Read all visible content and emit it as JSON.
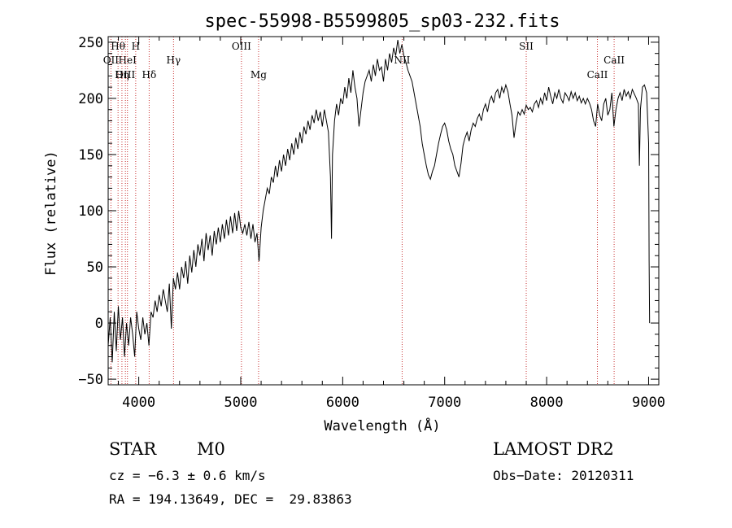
{
  "chart_data": {
    "type": "line",
    "title": "spec-55998-B5599805_sp03-232.fits",
    "xlabel": "Wavelength (Å)",
    "ylabel": "Flux (relative)",
    "xlim": [
      3700,
      9100
    ],
    "ylim": [
      -55,
      255
    ],
    "xticks": [
      4000,
      5000,
      6000,
      7000,
      8000,
      9000
    ],
    "yticks": [
      -50,
      0,
      50,
      100,
      150,
      200,
      250
    ],
    "grid": false,
    "series": [
      {
        "points": [
          [
            3700,
            -20
          ],
          [
            3720,
            5
          ],
          [
            3740,
            -35
          ],
          [
            3760,
            10
          ],
          [
            3780,
            -25
          ],
          [
            3800,
            15
          ],
          [
            3820,
            -15
          ],
          [
            3840,
            5
          ],
          [
            3860,
            -30
          ],
          [
            3880,
            0
          ],
          [
            3900,
            -20
          ],
          [
            3920,
            5
          ],
          [
            3940,
            -10
          ],
          [
            3960,
            -30
          ],
          [
            3980,
            10
          ],
          [
            4000,
            -5
          ],
          [
            4020,
            -15
          ],
          [
            4040,
            5
          ],
          [
            4060,
            -10
          ],
          [
            4080,
            0
          ],
          [
            4100,
            -20
          ],
          [
            4120,
            10
          ],
          [
            4140,
            5
          ],
          [
            4160,
            20
          ],
          [
            4180,
            10
          ],
          [
            4200,
            25
          ],
          [
            4220,
            15
          ],
          [
            4240,
            30
          ],
          [
            4260,
            20
          ],
          [
            4280,
            10
          ],
          [
            4300,
            35
          ],
          [
            4320,
            -5
          ],
          [
            4340,
            40
          ],
          [
            4360,
            30
          ],
          [
            4380,
            45
          ],
          [
            4400,
            30
          ],
          [
            4420,
            50
          ],
          [
            4440,
            40
          ],
          [
            4460,
            55
          ],
          [
            4480,
            35
          ],
          [
            4500,
            60
          ],
          [
            4520,
            45
          ],
          [
            4540,
            65
          ],
          [
            4560,
            50
          ],
          [
            4580,
            70
          ],
          [
            4600,
            60
          ],
          [
            4620,
            75
          ],
          [
            4640,
            55
          ],
          [
            4660,
            80
          ],
          [
            4680,
            65
          ],
          [
            4700,
            78
          ],
          [
            4720,
            60
          ],
          [
            4740,
            82
          ],
          [
            4760,
            70
          ],
          [
            4780,
            85
          ],
          [
            4800,
            72
          ],
          [
            4820,
            88
          ],
          [
            4840,
            75
          ],
          [
            4860,
            92
          ],
          [
            4880,
            78
          ],
          [
            4900,
            95
          ],
          [
            4920,
            80
          ],
          [
            4940,
            98
          ],
          [
            4960,
            82
          ],
          [
            4980,
            100
          ],
          [
            5000,
            85
          ],
          [
            5020,
            80
          ],
          [
            5040,
            88
          ],
          [
            5060,
            78
          ],
          [
            5080,
            90
          ],
          [
            5100,
            75
          ],
          [
            5120,
            88
          ],
          [
            5140,
            72
          ],
          [
            5160,
            80
          ],
          [
            5180,
            55
          ],
          [
            5200,
            85
          ],
          [
            5220,
            100
          ],
          [
            5240,
            110
          ],
          [
            5260,
            120
          ],
          [
            5280,
            115
          ],
          [
            5300,
            130
          ],
          [
            5320,
            125
          ],
          [
            5340,
            140
          ],
          [
            5360,
            130
          ],
          [
            5380,
            145
          ],
          [
            5400,
            135
          ],
          [
            5420,
            150
          ],
          [
            5440,
            140
          ],
          [
            5460,
            155
          ],
          [
            5480,
            145
          ],
          [
            5500,
            160
          ],
          [
            5520,
            150
          ],
          [
            5540,
            165
          ],
          [
            5560,
            155
          ],
          [
            5580,
            170
          ],
          [
            5600,
            160
          ],
          [
            5620,
            175
          ],
          [
            5640,
            168
          ],
          [
            5660,
            180
          ],
          [
            5680,
            172
          ],
          [
            5700,
            185
          ],
          [
            5720,
            178
          ],
          [
            5740,
            190
          ],
          [
            5760,
            180
          ],
          [
            5780,
            188
          ],
          [
            5800,
            175
          ],
          [
            5820,
            190
          ],
          [
            5840,
            180
          ],
          [
            5860,
            170
          ],
          [
            5880,
            130
          ],
          [
            5890,
            75
          ],
          [
            5900,
            150
          ],
          [
            5920,
            180
          ],
          [
            5940,
            195
          ],
          [
            5960,
            185
          ],
          [
            5980,
            200
          ],
          [
            6000,
            195
          ],
          [
            6020,
            210
          ],
          [
            6040,
            200
          ],
          [
            6060,
            218
          ],
          [
            6080,
            205
          ],
          [
            6100,
            225
          ],
          [
            6120,
            210
          ],
          [
            6140,
            200
          ],
          [
            6160,
            175
          ],
          [
            6180,
            190
          ],
          [
            6200,
            205
          ],
          [
            6220,
            215
          ],
          [
            6240,
            220
          ],
          [
            6260,
            225
          ],
          [
            6280,
            215
          ],
          [
            6300,
            230
          ],
          [
            6320,
            220
          ],
          [
            6340,
            235
          ],
          [
            6360,
            225
          ],
          [
            6380,
            228
          ],
          [
            6400,
            215
          ],
          [
            6420,
            235
          ],
          [
            6440,
            225
          ],
          [
            6460,
            240
          ],
          [
            6480,
            232
          ],
          [
            6500,
            245
          ],
          [
            6520,
            238
          ],
          [
            6540,
            252
          ],
          [
            6560,
            240
          ],
          [
            6580,
            248
          ],
          [
            6600,
            238
          ],
          [
            6620,
            232
          ],
          [
            6640,
            225
          ],
          [
            6660,
            220
          ],
          [
            6680,
            215
          ],
          [
            6700,
            205
          ],
          [
            6720,
            195
          ],
          [
            6740,
            185
          ],
          [
            6760,
            175
          ],
          [
            6780,
            160
          ],
          [
            6800,
            150
          ],
          [
            6820,
            140
          ],
          [
            6840,
            132
          ],
          [
            6860,
            128
          ],
          [
            6880,
            135
          ],
          [
            6900,
            140
          ],
          [
            6920,
            150
          ],
          [
            6940,
            160
          ],
          [
            6960,
            168
          ],
          [
            6980,
            175
          ],
          [
            7000,
            178
          ],
          [
            7020,
            172
          ],
          [
            7040,
            162
          ],
          [
            7060,
            155
          ],
          [
            7080,
            150
          ],
          [
            7100,
            140
          ],
          [
            7120,
            135
          ],
          [
            7140,
            130
          ],
          [
            7160,
            142
          ],
          [
            7180,
            158
          ],
          [
            7200,
            165
          ],
          [
            7220,
            170
          ],
          [
            7240,
            162
          ],
          [
            7260,
            172
          ],
          [
            7280,
            178
          ],
          [
            7300,
            175
          ],
          [
            7320,
            182
          ],
          [
            7340,
            186
          ],
          [
            7360,
            180
          ],
          [
            7380,
            190
          ],
          [
            7400,
            195
          ],
          [
            7420,
            188
          ],
          [
            7440,
            198
          ],
          [
            7460,
            202
          ],
          [
            7480,
            196
          ],
          [
            7500,
            205
          ],
          [
            7520,
            208
          ],
          [
            7540,
            200
          ],
          [
            7560,
            210
          ],
          [
            7580,
            205
          ],
          [
            7600,
            212
          ],
          [
            7620,
            206
          ],
          [
            7640,
            195
          ],
          [
            7660,
            185
          ],
          [
            7680,
            165
          ],
          [
            7700,
            178
          ],
          [
            7720,
            188
          ],
          [
            7740,
            185
          ],
          [
            7760,
            190
          ],
          [
            7780,
            186
          ],
          [
            7800,
            194
          ],
          [
            7820,
            190
          ],
          [
            7840,
            192
          ],
          [
            7860,
            188
          ],
          [
            7880,
            195
          ],
          [
            7900,
            198
          ],
          [
            7920,
            192
          ],
          [
            7940,
            200
          ],
          [
            7960,
            195
          ],
          [
            7980,
            205
          ],
          [
            8000,
            198
          ],
          [
            8020,
            210
          ],
          [
            8040,
            202
          ],
          [
            8060,
            195
          ],
          [
            8080,
            205
          ],
          [
            8100,
            200
          ],
          [
            8120,
            208
          ],
          [
            8140,
            200
          ],
          [
            8160,
            196
          ],
          [
            8180,
            205
          ],
          [
            8200,
            202
          ],
          [
            8220,
            198
          ],
          [
            8240,
            206
          ],
          [
            8260,
            200
          ],
          [
            8280,
            205
          ],
          [
            8300,
            198
          ],
          [
            8320,
            202
          ],
          [
            8340,
            196
          ],
          [
            8360,
            200
          ],
          [
            8380,
            195
          ],
          [
            8400,
            200
          ],
          [
            8420,
            196
          ],
          [
            8440,
            190
          ],
          [
            8460,
            180
          ],
          [
            8480,
            175
          ],
          [
            8500,
            195
          ],
          [
            8520,
            185
          ],
          [
            8540,
            180
          ],
          [
            8560,
            195
          ],
          [
            8580,
            200
          ],
          [
            8600,
            185
          ],
          [
            8620,
            190
          ],
          [
            8640,
            205
          ],
          [
            8660,
            175
          ],
          [
            8680,
            190
          ],
          [
            8700,
            200
          ],
          [
            8720,
            205
          ],
          [
            8740,
            198
          ],
          [
            8760,
            208
          ],
          [
            8780,
            202
          ],
          [
            8800,
            206
          ],
          [
            8820,
            200
          ],
          [
            8840,
            208
          ],
          [
            8860,
            204
          ],
          [
            8880,
            200
          ],
          [
            8900,
            195
          ],
          [
            8910,
            140
          ],
          [
            8920,
            190
          ],
          [
            8940,
            210
          ],
          [
            8960,
            212
          ],
          [
            8980,
            205
          ],
          [
            9000,
            160
          ],
          [
            9005,
            55
          ],
          [
            9010,
            0
          ]
        ]
      }
    ],
    "line_markers": [
      {
        "label": "Hθ",
        "wavelength": 3797,
        "row": 1
      },
      {
        "label": "H",
        "wavelength": 3970,
        "row": 1
      },
      {
        "label": "OII",
        "wavelength": 3727,
        "row": 2
      },
      {
        "label": "HeI",
        "wavelength": 3889,
        "row": 2
      },
      {
        "label": "Hγ",
        "wavelength": 4341,
        "row": 2
      },
      {
        "label": "OIII",
        "wavelength": 3869,
        "row": 3
      },
      {
        "label": "Hη",
        "wavelength": 3835,
        "row": 3
      },
      {
        "label": "Hδ",
        "wavelength": 4102,
        "row": 3
      },
      {
        "label": "OIII",
        "wavelength": 5007,
        "row": 1
      },
      {
        "label": "Mg",
        "wavelength": 5175,
        "row": 3
      },
      {
        "label": "NII",
        "wavelength": 6583,
        "row": 2
      },
      {
        "label": "SII",
        "wavelength": 7800,
        "row": 1
      },
      {
        "label": "CaII",
        "wavelength": 8662,
        "row": 2
      },
      {
        "label": "CaII",
        "wavelength": 8498,
        "row": 3
      }
    ]
  },
  "info": {
    "class": "STAR",
    "subclass": "M0",
    "cz": "cz = −6.3 ± 0.6 km/s",
    "radec": "RA = 194.13649, DEC =  29.83863",
    "survey": "LAMOST DR2",
    "obsdate": "Obs−Date: 20120311"
  },
  "colors": {
    "axis": "#000000",
    "spectrum": "#000000",
    "marker": "#c83232"
  }
}
